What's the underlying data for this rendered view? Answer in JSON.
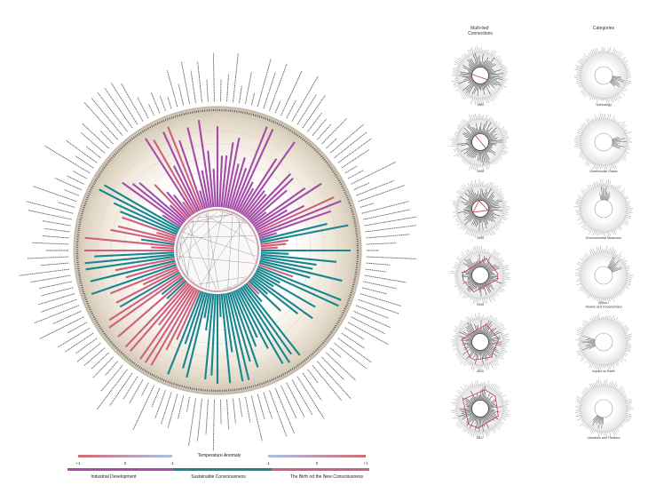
{
  "legend": {
    "title": "Temperature Anomaly",
    "scale_left": {
      "ticks": [
        "+1",
        "0",
        "-1"
      ]
    },
    "scale_right": {
      "ticks": [
        "-1",
        "0",
        "+1"
      ]
    },
    "items": [
      {
        "label": "Industrial Development",
        "color": "#a44ca8"
      },
      {
        "label": "Sustainable Consciousness",
        "color": "#17868e"
      },
      {
        "label": "The Birth od the New Consciousness",
        "color": "#d0607a"
      }
    ]
  },
  "columns": {
    "left_title": "Multi-tied\nConnections",
    "right_title": "Categories"
  },
  "mini_left": [
    "1960",
    "1990",
    "1995",
    "2005",
    "2010",
    "2017"
  ],
  "mini_right": [
    "Technology",
    "Greenhouse Gases",
    "Environmental Measures",
    "Films,\nMovies and Documentary",
    "Impact on Earth",
    "Literature and Thinkers"
  ],
  "colors": {
    "industrial": "#a44ca8",
    "sustainable": "#17868e",
    "new_consciousness": "#d0607a",
    "ring_fill": "#efe8dc",
    "hub_link": "#888888"
  },
  "chart_data": {
    "type": "radial-bar",
    "description_series": [
      "Industrial Development",
      "Sustainable Consciousness",
      "The Birth od the New Consciousness"
    ]
  }
}
